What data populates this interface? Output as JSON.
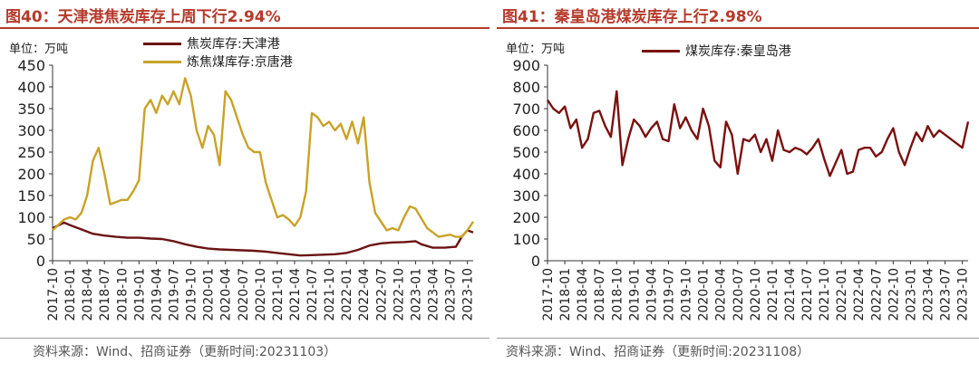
{
  "left_panel": {
    "title": "图40：天津港焦炭库存上周下行2.94%",
    "unit": "单位：万吨",
    "source": "资料来源：Wind、招商证券（更新时间:20231103）"
  },
  "right_panel": {
    "title": "图41：秦皇岛港煤炭库存上行2.98%",
    "unit": "单位：万吨",
    "source": "资料来源：Wind、招商证券（更新时间:20231108）"
  },
  "chart_data": [
    {
      "type": "line",
      "title": "图40：天津港焦炭库存上周下行2.94%",
      "ylabel": "单位：万吨",
      "ylim": [
        0,
        450
      ],
      "yticks": [
        0,
        50,
        100,
        150,
        200,
        250,
        300,
        350,
        400,
        450
      ],
      "xlim": [
        "2017-10",
        "2023-11"
      ],
      "xtick_labels": [
        "2017-10",
        "2018-01",
        "2018-04",
        "2018-07",
        "2018-10",
        "2019-01",
        "2019-04",
        "2019-07",
        "2019-10",
        "2020-01",
        "2020-04",
        "2020-07",
        "2020-10",
        "2021-01",
        "2021-04",
        "2021-07",
        "2021-10",
        "2022-01",
        "2022-04",
        "2022-07",
        "2022-10",
        "2023-01",
        "2023-04",
        "2023-07",
        "2023-10"
      ],
      "grid": false,
      "legend_position": "top-center",
      "series": [
        {
          "name": "焦炭库存:天津港",
          "color": "#6b1212",
          "x": [
            "2017-10",
            "2017-12",
            "2018-01",
            "2018-03",
            "2018-05",
            "2018-07",
            "2018-09",
            "2018-11",
            "2019-01",
            "2019-03",
            "2019-05",
            "2019-07",
            "2019-09",
            "2019-11",
            "2020-01",
            "2020-03",
            "2020-05",
            "2020-07",
            "2020-09",
            "2020-11",
            "2021-01",
            "2021-03",
            "2021-05",
            "2021-07",
            "2021-09",
            "2021-11",
            "2022-01",
            "2022-03",
            "2022-05",
            "2022-07",
            "2022-09",
            "2022-11",
            "2023-01",
            "2023-02",
            "2023-04",
            "2023-06",
            "2023-08",
            "2023-09",
            "2023-10",
            "2023-11"
          ],
          "values": [
            75,
            88,
            82,
            72,
            62,
            58,
            55,
            53,
            53,
            51,
            50,
            45,
            38,
            32,
            28,
            26,
            25,
            24,
            23,
            21,
            18,
            15,
            12,
            13,
            14,
            15,
            18,
            25,
            35,
            40,
            42,
            43,
            45,
            38,
            30,
            30,
            32,
            55,
            70,
            65
          ]
        },
        {
          "name": "炼焦煤库存:京唐港",
          "color": "#c9a227",
          "x": [
            "2017-10",
            "2017-12",
            "2018-01",
            "2018-02",
            "2018-03",
            "2018-04",
            "2018-05",
            "2018-06",
            "2018-07",
            "2018-08",
            "2018-09",
            "2018-10",
            "2018-11",
            "2018-12",
            "2019-01",
            "2019-02",
            "2019-03",
            "2019-04",
            "2019-05",
            "2019-06",
            "2019-07",
            "2019-08",
            "2019-09",
            "2019-10",
            "2019-11",
            "2019-12",
            "2020-01",
            "2020-02",
            "2020-03",
            "2020-04",
            "2020-05",
            "2020-06",
            "2020-07",
            "2020-08",
            "2020-09",
            "2020-10",
            "2020-11",
            "2020-12",
            "2021-01",
            "2021-02",
            "2021-03",
            "2021-04",
            "2021-05",
            "2021-06",
            "2021-07",
            "2021-08",
            "2021-09",
            "2021-10",
            "2021-11",
            "2021-12",
            "2022-01",
            "2022-02",
            "2022-03",
            "2022-04",
            "2022-05",
            "2022-06",
            "2022-07",
            "2022-08",
            "2022-09",
            "2022-10",
            "2022-11",
            "2022-12",
            "2023-01",
            "2023-03",
            "2023-05",
            "2023-07",
            "2023-08",
            "2023-09",
            "2023-10",
            "2023-11"
          ],
          "values": [
            70,
            95,
            100,
            95,
            110,
            150,
            230,
            260,
            200,
            130,
            135,
            140,
            140,
            160,
            185,
            350,
            370,
            340,
            380,
            360,
            390,
            360,
            420,
            380,
            300,
            260,
            310,
            290,
            220,
            390,
            370,
            330,
            290,
            260,
            250,
            250,
            180,
            140,
            100,
            105,
            95,
            80,
            100,
            160,
            340,
            330,
            310,
            320,
            300,
            315,
            280,
            320,
            270,
            330,
            180,
            110,
            90,
            70,
            75,
            70,
            100,
            125,
            120,
            75,
            55,
            60,
            55,
            55,
            70,
            90
          ]
        }
      ]
    },
    {
      "type": "line",
      "title": "图41：秦皇岛港煤炭库存上行2.98%",
      "ylabel": "单位：万吨",
      "ylim": [
        0,
        900
      ],
      "yticks": [
        0,
        100,
        200,
        300,
        400,
        500,
        600,
        700,
        800,
        900
      ],
      "xlim": [
        "2017-10",
        "2023-11"
      ],
      "xtick_labels": [
        "2017-10",
        "2018-01",
        "2018-04",
        "2018-07",
        "2018-10",
        "2019-01",
        "2019-04",
        "2019-07",
        "2019-10",
        "2020-01",
        "2020-04",
        "2020-07",
        "2020-10",
        "2021-01",
        "2021-04",
        "2021-07",
        "2021-10",
        "2022-01",
        "2022-04",
        "2022-07",
        "2022-10",
        "2023-01",
        "2023-04",
        "2023-07",
        "2023-10"
      ],
      "grid": false,
      "legend_position": "top-center",
      "series": [
        {
          "name": "煤炭库存:秦皇岛港",
          "color": "#7a1010",
          "x": [
            "2017-10",
            "2017-11",
            "2017-12",
            "2018-01",
            "2018-02",
            "2018-03",
            "2018-04",
            "2018-05",
            "2018-06",
            "2018-07",
            "2018-08",
            "2018-09",
            "2018-10",
            "2018-11",
            "2018-12",
            "2019-01",
            "2019-02",
            "2019-03",
            "2019-04",
            "2019-05",
            "2019-06",
            "2019-07",
            "2019-08",
            "2019-09",
            "2019-10",
            "2019-11",
            "2019-12",
            "2020-01",
            "2020-02",
            "2020-03",
            "2020-04",
            "2020-05",
            "2020-06",
            "2020-07",
            "2020-08",
            "2020-09",
            "2020-10",
            "2020-11",
            "2020-12",
            "2021-01",
            "2021-02",
            "2021-03",
            "2021-04",
            "2021-05",
            "2021-06",
            "2021-07",
            "2021-08",
            "2021-09",
            "2021-10",
            "2021-11",
            "2021-12",
            "2022-01",
            "2022-02",
            "2022-03",
            "2022-04",
            "2022-05",
            "2022-06",
            "2022-07",
            "2022-08",
            "2022-09",
            "2022-10",
            "2022-11",
            "2022-12",
            "2023-01",
            "2023-02",
            "2023-03",
            "2023-04",
            "2023-05",
            "2023-06",
            "2023-07",
            "2023-08",
            "2023-09",
            "2023-10",
            "2023-11"
          ],
          "values": [
            740,
            700,
            680,
            710,
            610,
            650,
            520,
            560,
            680,
            690,
            620,
            570,
            780,
            440,
            560,
            650,
            620,
            570,
            610,
            640,
            560,
            550,
            720,
            610,
            660,
            600,
            560,
            700,
            620,
            460,
            430,
            640,
            580,
            400,
            560,
            550,
            580,
            500,
            560,
            460,
            600,
            510,
            500,
            520,
            510,
            490,
            520,
            560,
            470,
            390,
            450,
            510,
            400,
            410,
            510,
            520,
            520,
            480,
            500,
            560,
            610,
            500,
            440,
            520,
            590,
            550,
            620,
            570,
            600,
            580,
            560,
            540,
            520,
            640
          ]
        }
      ]
    }
  ]
}
